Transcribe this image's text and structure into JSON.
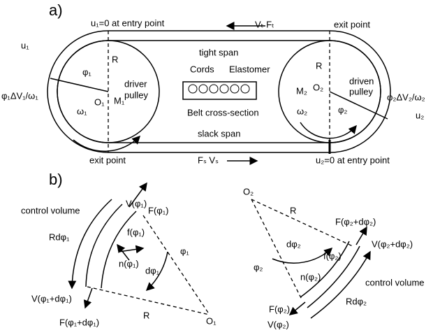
{
  "panel_a": {
    "label": "a)",
    "entry_top": "u₁=0 at entry point",
    "tight_force": "Vₜ  Fₜ",
    "exit_top": "exit point",
    "tight_span": "tight span",
    "R_left": "R",
    "R_right": "R",
    "cords": "Cords",
    "elastomer": "Elastomer",
    "phi1": "φ₁",
    "driver": "driver",
    "driver2": "pulley",
    "O1": "O₁",
    "M1": "M₁",
    "omega1": "ω₁",
    "u1": "u₁",
    "slip1": "φ₁ΔV₁/ω₁",
    "cross_section": "Belt cross-section",
    "M2": "M₂",
    "O2": "O₂",
    "driven": "driven",
    "driven2": "pulley",
    "omega2": "ω₂",
    "phi2": "φ₂",
    "slip2": "φ₂ΔV₂/ω₂",
    "u2": "u₂",
    "slack_span": "slack span",
    "exit_bottom": "exit point",
    "slack_force": "Fₛ  Vₛ",
    "entry_bottom": "u₂=0 at entry point"
  },
  "panel_b": {
    "label": "b)",
    "cv1": "control volume",
    "V1": "V(φ₁)",
    "F1": "F(φ₁)",
    "Rd1": "Rdφ₁",
    "f1": "f(φ₁)",
    "n1": "n(φ₁)",
    "phi1": "φ₁",
    "dphi1": "dφ₁",
    "Vd1": "V(φ₁+dφ₁)",
    "Fd1": "F(φ₁+dφ₁)",
    "R1": "R",
    "O1": "O₁",
    "O2": "O₂",
    "R2": "R",
    "dphi2": "dφ₂",
    "phi2": "φ₂",
    "Fd2": "F(φ₂+dφ₂)",
    "Vd2": "V(φ₂+dφ₂)",
    "f2": "f(φ₂)",
    "n2": "n(φ₂)",
    "cv2": "control volume",
    "Rd2": "Rdφ₂",
    "F2": "F(φ₂)",
    "V2": "V(φ₂)"
  }
}
